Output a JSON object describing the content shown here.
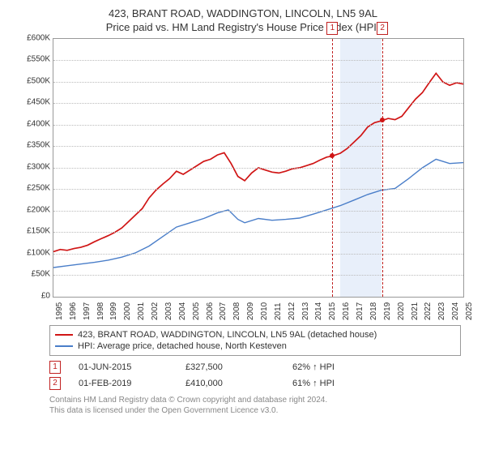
{
  "title": "423, BRANT ROAD, WADDINGTON, LINCOLN, LN5 9AL",
  "subtitle": "Price paid vs. HM Land Registry's House Price Index (HPI)",
  "chart": {
    "type": "line",
    "background_color": "#ffffff",
    "grid_color": "#bbbbbb",
    "border_color": "#999999",
    "label_fontsize": 10,
    "y": {
      "min": 0,
      "max": 600000,
      "step": 50000,
      "prefix": "£",
      "suffix": "K",
      "ticks": [
        "£0",
        "£50K",
        "£100K",
        "£150K",
        "£200K",
        "£250K",
        "£300K",
        "£350K",
        "£400K",
        "£450K",
        "£500K",
        "£550K",
        "£600K"
      ]
    },
    "x": {
      "years": [
        1995,
        1996,
        1997,
        1998,
        1999,
        2000,
        2001,
        2002,
        2003,
        2004,
        2005,
        2006,
        2007,
        2008,
        2009,
        2010,
        2011,
        2012,
        2013,
        2014,
        2015,
        2016,
        2017,
        2018,
        2019,
        2020,
        2021,
        2022,
        2023,
        2024,
        2025
      ]
    },
    "band": {
      "from": 2016,
      "to": 2019,
      "color": "#e8effa"
    },
    "vlines": [
      {
        "id": "1",
        "year": 2015.42,
        "color": "#c02020"
      },
      {
        "id": "2",
        "year": 2019.08,
        "color": "#c02020"
      }
    ],
    "series": [
      {
        "name": "423, BRANT ROAD, WADDINGTON, LINCOLN, LN5 9AL (detached house)",
        "color": "#d01515",
        "line_width": 1.7,
        "data": [
          [
            1995,
            105000
          ],
          [
            1995.5,
            110000
          ],
          [
            1996,
            108000
          ],
          [
            1996.5,
            112000
          ],
          [
            1997,
            115000
          ],
          [
            1997.5,
            120000
          ],
          [
            1998,
            128000
          ],
          [
            1998.5,
            135000
          ],
          [
            1999,
            142000
          ],
          [
            1999.5,
            150000
          ],
          [
            2000,
            160000
          ],
          [
            2000.5,
            175000
          ],
          [
            2001,
            190000
          ],
          [
            2001.5,
            205000
          ],
          [
            2002,
            230000
          ],
          [
            2002.5,
            248000
          ],
          [
            2003,
            262000
          ],
          [
            2003.5,
            275000
          ],
          [
            2004,
            292000
          ],
          [
            2004.5,
            285000
          ],
          [
            2005,
            295000
          ],
          [
            2005.5,
            305000
          ],
          [
            2006,
            315000
          ],
          [
            2006.5,
            320000
          ],
          [
            2007,
            330000
          ],
          [
            2007.5,
            335000
          ],
          [
            2008,
            310000
          ],
          [
            2008.5,
            280000
          ],
          [
            2009,
            270000
          ],
          [
            2009.5,
            288000
          ],
          [
            2010,
            300000
          ],
          [
            2010.5,
            295000
          ],
          [
            2011,
            290000
          ],
          [
            2011.5,
            288000
          ],
          [
            2012,
            292000
          ],
          [
            2012.5,
            298000
          ],
          [
            2013,
            300000
          ],
          [
            2013.5,
            305000
          ],
          [
            2014,
            310000
          ],
          [
            2014.5,
            318000
          ],
          [
            2015,
            325000
          ],
          [
            2015.42,
            327500
          ],
          [
            2016,
            334000
          ],
          [
            2016.5,
            345000
          ],
          [
            2017,
            360000
          ],
          [
            2017.5,
            375000
          ],
          [
            2018,
            395000
          ],
          [
            2018.5,
            405000
          ],
          [
            2019.08,
            410000
          ],
          [
            2019.5,
            415000
          ],
          [
            2020,
            412000
          ],
          [
            2020.5,
            420000
          ],
          [
            2021,
            440000
          ],
          [
            2021.5,
            460000
          ],
          [
            2022,
            475000
          ],
          [
            2022.5,
            498000
          ],
          [
            2023,
            520000
          ],
          [
            2023.5,
            500000
          ],
          [
            2024,
            492000
          ],
          [
            2024.5,
            498000
          ],
          [
            2025,
            495000
          ]
        ]
      },
      {
        "name": "HPI: Average price, detached house, North Kesteven",
        "color": "#4a7ec9",
        "line_width": 1.4,
        "data": [
          [
            1995,
            68000
          ],
          [
            1996,
            72000
          ],
          [
            1997,
            76000
          ],
          [
            1998,
            80000
          ],
          [
            1999,
            85000
          ],
          [
            2000,
            92000
          ],
          [
            2001,
            102000
          ],
          [
            2002,
            118000
          ],
          [
            2003,
            140000
          ],
          [
            2004,
            162000
          ],
          [
            2005,
            172000
          ],
          [
            2006,
            182000
          ],
          [
            2007,
            195000
          ],
          [
            2007.8,
            202000
          ],
          [
            2008.5,
            180000
          ],
          [
            2009,
            172000
          ],
          [
            2010,
            182000
          ],
          [
            2011,
            178000
          ],
          [
            2012,
            180000
          ],
          [
            2013,
            183000
          ],
          [
            2014,
            192000
          ],
          [
            2015,
            202000
          ],
          [
            2016,
            212000
          ],
          [
            2017,
            225000
          ],
          [
            2018,
            238000
          ],
          [
            2019,
            248000
          ],
          [
            2020,
            252000
          ],
          [
            2021,
            275000
          ],
          [
            2022,
            300000
          ],
          [
            2023,
            320000
          ],
          [
            2024,
            310000
          ],
          [
            2025,
            312000
          ]
        ]
      }
    ],
    "points": [
      {
        "year": 2015.42,
        "value": 327500,
        "color": "#d01515"
      },
      {
        "year": 2019.08,
        "value": 410000,
        "color": "#d01515"
      }
    ]
  },
  "legend": {
    "s0": "423, BRANT ROAD, WADDINGTON, LINCOLN, LN5 9AL (detached house)",
    "s1": "HPI: Average price, detached house, North Kesteven"
  },
  "events": [
    {
      "id": "1",
      "date": "01-JUN-2015",
      "price": "£327,500",
      "delta": "62% ↑ HPI"
    },
    {
      "id": "2",
      "date": "01-FEB-2019",
      "price": "£410,000",
      "delta": "61% ↑ HPI"
    }
  ],
  "footer": {
    "l1": "Contains HM Land Registry data © Crown copyright and database right 2024.",
    "l2": "This data is licensed under the Open Government Licence v3.0."
  }
}
